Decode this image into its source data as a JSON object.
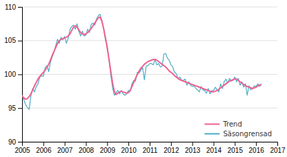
{
  "chart_data": {
    "type": "line",
    "x": [
      2005.0,
      2005.0833333333333,
      2005.1666666666667,
      2005.25,
      2005.3333333333333,
      2005.4166666666667,
      2005.5,
      2005.5833333333333,
      2005.6666666666667,
      2005.75,
      2005.8333333333333,
      2005.9166666666667,
      2006.0,
      2006.0833333333333,
      2006.1666666666667,
      2006.25,
      2006.3333333333333,
      2006.4166666666667,
      2006.5,
      2006.5833333333333,
      2006.6666666666667,
      2006.75,
      2006.8333333333333,
      2006.9166666666667,
      2007.0,
      2007.0833333333333,
      2007.1666666666667,
      2007.25,
      2007.3333333333333,
      2007.4166666666667,
      2007.5,
      2007.5833333333333,
      2007.6666666666667,
      2007.75,
      2007.8333333333333,
      2007.9166666666667,
      2008.0,
      2008.0833333333333,
      2008.1666666666667,
      2008.25,
      2008.3333333333333,
      2008.4166666666667,
      2008.5,
      2008.5833333333333,
      2008.6666666666667,
      2008.75,
      2008.8333333333333,
      2008.9166666666667,
      2009.0,
      2009.0833333333333,
      2009.1666666666667,
      2009.25,
      2009.3333333333333,
      2009.4166666666667,
      2009.5,
      2009.5833333333333,
      2009.6666666666667,
      2009.75,
      2009.8333333333333,
      2009.9166666666667,
      2010.0,
      2010.0833333333333,
      2010.1666666666667,
      2010.25,
      2010.3333333333333,
      2010.4166666666667,
      2010.5,
      2010.5833333333333,
      2010.6666666666667,
      2010.75,
      2010.8333333333333,
      2010.9166666666667,
      2011.0,
      2011.0833333333333,
      2011.1666666666667,
      2011.25,
      2011.3333333333333,
      2011.4166666666667,
      2011.5,
      2011.5833333333333,
      2011.6666666666667,
      2011.75,
      2011.8333333333333,
      2011.9166666666667,
      2012.0,
      2012.0833333333333,
      2012.1666666666667,
      2012.25,
      2012.3333333333333,
      2012.4166666666667,
      2012.5,
      2012.5833333333333,
      2012.6666666666667,
      2012.75,
      2012.8333333333333,
      2012.9166666666667,
      2013.0,
      2013.0833333333333,
      2013.1666666666667,
      2013.25,
      2013.3333333333333,
      2013.4166666666667,
      2013.5,
      2013.5833333333333,
      2013.6666666666667,
      2013.75,
      2013.8333333333333,
      2013.9166666666667,
      2014.0,
      2014.0833333333333,
      2014.1666666666667,
      2014.25,
      2014.3333333333333,
      2014.4166666666667,
      2014.5,
      2014.5833333333333,
      2014.6666666666667,
      2014.75,
      2014.8333333333333,
      2014.9166666666667,
      2015.0,
      2015.0833333333333,
      2015.1666666666667,
      2015.25,
      2015.3333333333333,
      2015.4166666666667,
      2015.5,
      2015.5833333333333,
      2015.6666666666667,
      2015.75,
      2015.8333333333333,
      2015.9166666666667,
      2016.0,
      2016.0833333333333,
      2016.1666666666667,
      2016.25
    ],
    "xlim": [
      2005,
      2017
    ],
    "xticks": [
      2005,
      2006,
      2007,
      2008,
      2009,
      2010,
      2011,
      2012,
      2013,
      2014,
      2015,
      2016,
      2017
    ],
    "ylim": [
      90,
      110
    ],
    "yticks": [
      90,
      95,
      100,
      105,
      110
    ],
    "grid": true,
    "legend": "lower right",
    "series": [
      {
        "name": "Trend",
        "color": "#f06090",
        "values": [
          96.8,
          96.5,
          96.3,
          96.4,
          96.7,
          97.1,
          97.7,
          98.3,
          98.8,
          99.3,
          99.7,
          100.0,
          100.3,
          100.6,
          101.0,
          101.5,
          102.1,
          102.8,
          103.4,
          104.0,
          104.6,
          105.0,
          105.2,
          105.3,
          105.4,
          105.5,
          105.7,
          106.0,
          106.5,
          107.0,
          107.2,
          107.0,
          106.6,
          106.2,
          106.0,
          105.9,
          106.0,
          106.2,
          106.5,
          106.8,
          107.2,
          107.6,
          108.0,
          108.4,
          108.5,
          107.9,
          106.8,
          105.5,
          104.0,
          102.3,
          100.5,
          98.8,
          97.5,
          97.0,
          97.2,
          97.4,
          97.5,
          97.4,
          97.3,
          97.2,
          97.3,
          97.6,
          98.2,
          98.8,
          99.4,
          100.0,
          100.5,
          100.9,
          101.2,
          101.5,
          101.7,
          101.9,
          102.0,
          102.1,
          102.2,
          102.2,
          102.1,
          101.9,
          101.7,
          101.5,
          101.3,
          101.1,
          100.8,
          100.5,
          100.3,
          100.1,
          99.8,
          99.6,
          99.4,
          99.2,
          99.1,
          99.0,
          98.9,
          98.8,
          98.7,
          98.6,
          98.5,
          98.4,
          98.3,
          98.2,
          98.1,
          98.0,
          97.9,
          97.8,
          97.7,
          97.6,
          97.5,
          97.4,
          97.4,
          97.5,
          97.6,
          97.8,
          98.0,
          98.2,
          98.4,
          98.6,
          98.8,
          99.0,
          99.1,
          99.2,
          99.3,
          99.3,
          99.1,
          98.9,
          98.7,
          98.5,
          98.3,
          98.2,
          98.1,
          98.0,
          97.9,
          98.0,
          98.1,
          98.3,
          98.4,
          98.5
        ]
      },
      {
        "name": "Säsongrensad",
        "color": "#4bacc6",
        "values": [
          96.9,
          96.2,
          95.5,
          95.1,
          94.8,
          96.8,
          97.9,
          97.4,
          98.2,
          98.6,
          99.6,
          99.8,
          99.7,
          101.0,
          101.3,
          100.4,
          101.8,
          102.6,
          103.3,
          104.3,
          105.2,
          104.6,
          105.5,
          105.1,
          105.6,
          104.6,
          105.3,
          106.6,
          107.1,
          107.3,
          106.7,
          107.5,
          106.4,
          105.7,
          106.4,
          105.7,
          105.8,
          106.7,
          106.2,
          107.4,
          107.6,
          107.3,
          108.2,
          108.7,
          108.9,
          108.0,
          106.8,
          105.1,
          104.3,
          102.2,
          100.0,
          98.1,
          96.9,
          97.3,
          97.6,
          97.1,
          97.6,
          97.1,
          96.9,
          97.1,
          97.6,
          97.5,
          98.6,
          99.1,
          99.0,
          100.3,
          100.2,
          100.6,
          101.0,
          99.2,
          101.2,
          101.3,
          101.6,
          101.6,
          101.4,
          102.2,
          101.4,
          101.6,
          101.1,
          101.2,
          103.0,
          103.1,
          102.4,
          102.1,
          101.4,
          101.1,
          100.3,
          100.1,
          99.3,
          99.6,
          99.1,
          99.1,
          99.3,
          98.4,
          98.9,
          98.4,
          98.2,
          98.3,
          97.9,
          97.7,
          97.4,
          98.2,
          97.7,
          97.6,
          97.2,
          97.9,
          97.1,
          97.6,
          97.6,
          98.1,
          97.7,
          97.4,
          98.6,
          97.9,
          98.9,
          99.3,
          98.7,
          99.4,
          99.0,
          99.1,
          99.6,
          98.9,
          99.4,
          98.4,
          98.9,
          98.1,
          98.6,
          96.9,
          98.3,
          97.7,
          97.9,
          98.3,
          98.2,
          98.6,
          98.2,
          98.6
        ]
      }
    ]
  }
}
